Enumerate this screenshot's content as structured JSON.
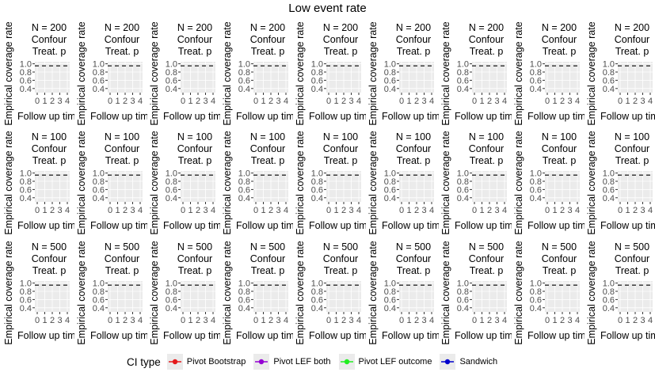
{
  "chart_data": {
    "type": "line",
    "title": "Low event rate",
    "panel_rows": [
      {
        "strip": [
          "N = 200",
          "Confour",
          "Treat. p"
        ]
      },
      {
        "strip": [
          "N = 100",
          "Confour",
          "Treat. p"
        ]
      },
      {
        "strip": [
          "N = 500",
          "Confour",
          "Treat. p"
        ]
      }
    ],
    "panel_columns": 9,
    "ylabel": "Empirical coverage rate",
    "xlabel": "Follow up time",
    "x_ticks": [
      "0",
      "1",
      "2",
      "3",
      "4"
    ],
    "y_ticks": [
      "1.0",
      "0.8",
      "0.6",
      "0.4"
    ],
    "x_range": [
      0,
      4
    ],
    "y_range": [
      0.3,
      1.05
    ],
    "reference_line": 0.95,
    "grid": true,
    "panel_background": "#ebebeb",
    "legend": {
      "title": "CI type",
      "placement": "bottom",
      "items": [
        {
          "name": "Pivot Bootstrap",
          "color": "#e41a1c"
        },
        {
          "name": "Pivot LEF both",
          "color": "#9400d3"
        },
        {
          "name": "Pivot LEF outcome",
          "color": "#22ee22"
        },
        {
          "name": "Sandwich",
          "color": "#0000cd"
        }
      ]
    }
  }
}
